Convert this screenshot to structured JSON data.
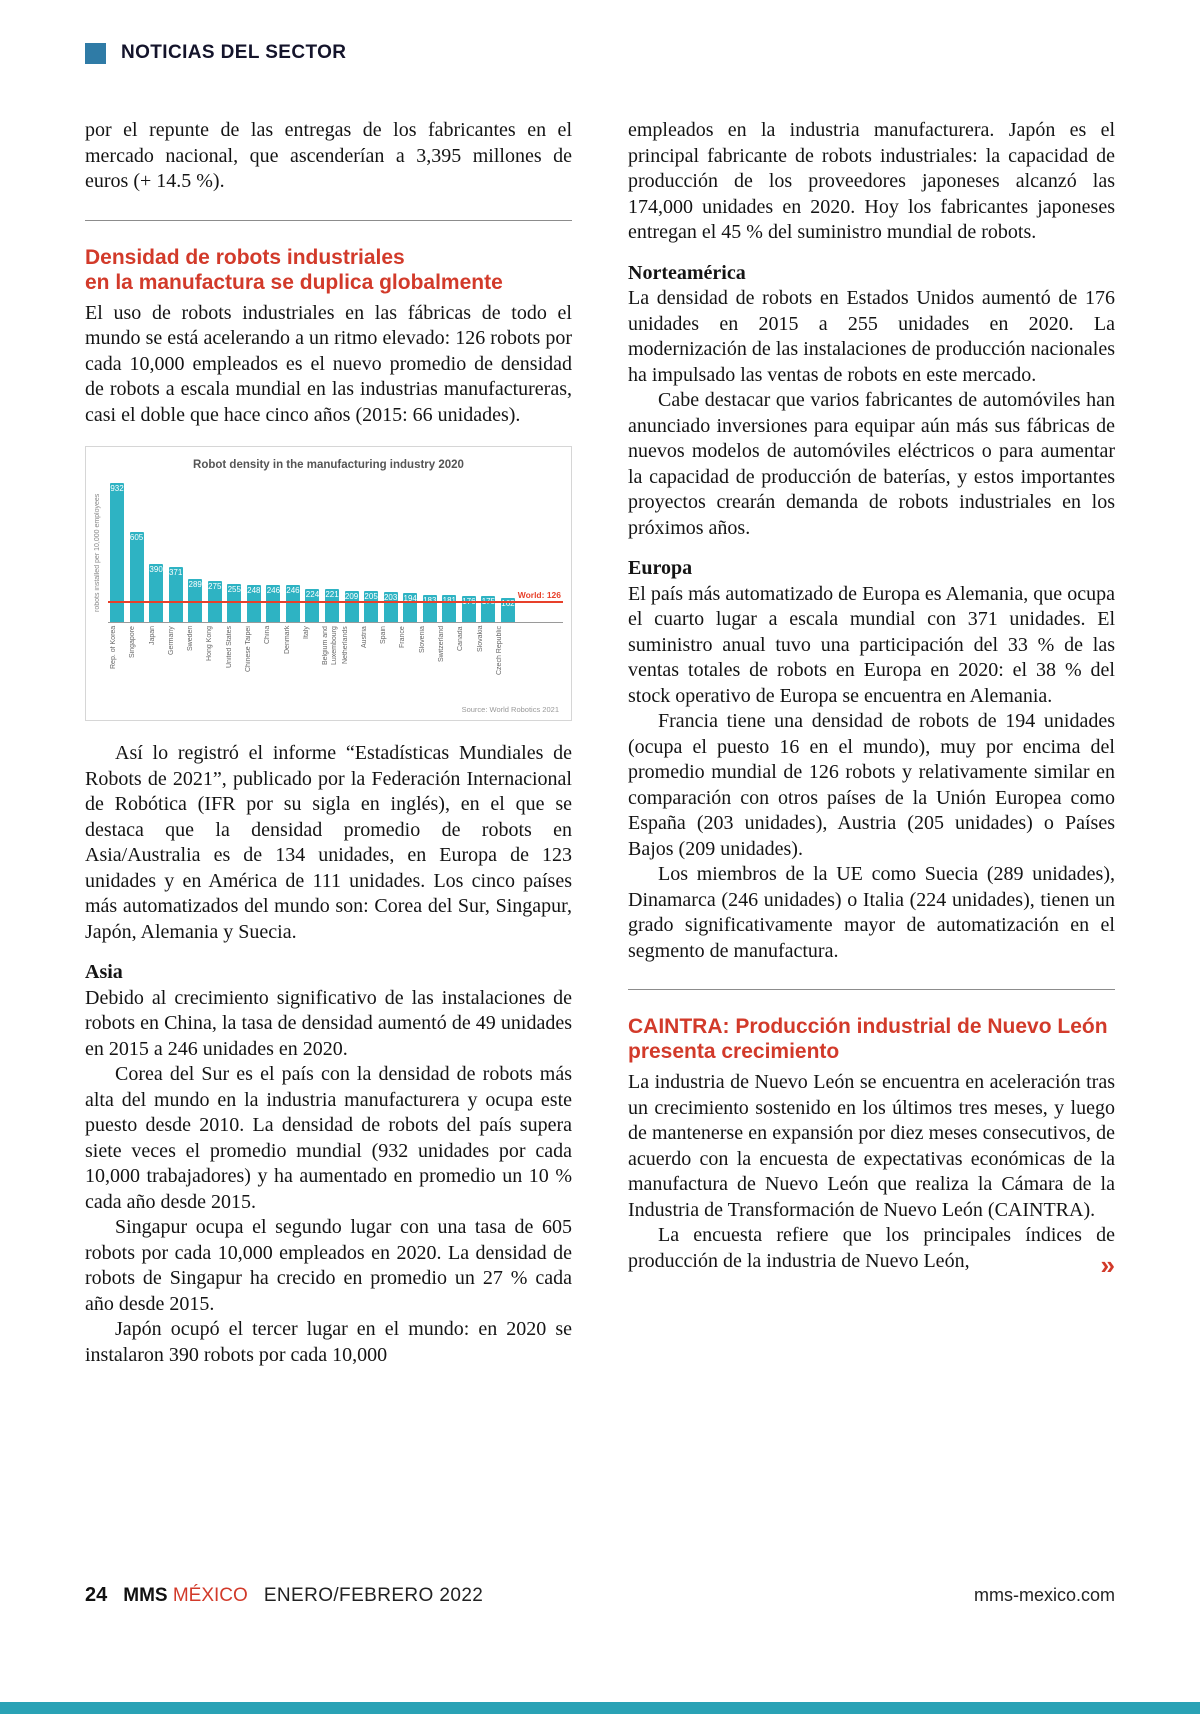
{
  "colors": {
    "accent_red": "#d23a2a",
    "accent_teal_bar": "#2aa2b5",
    "header_square_blue": "#2f7ba6"
  },
  "header": {
    "section_label": "NOTICIAS DEL SECTOR"
  },
  "left_column": {
    "carryover": "por el repunte de las entregas de los fabricantes en el mercado nacional, que ascenderían a 3,395 millones de euros (+ 14.5 %).",
    "article1_title_1": "Densidad de robots industriales",
    "article1_title_2": "en la manufactura se duplica globalmente",
    "article1_intro": "El uso de robots industriales en las fábricas de todo el mundo se está acelerando a un ritmo elevado: 126 robots por cada 10,000 empleados es el nuevo promedio de densidad de robots a escala mundial en las industrias manufactureras, casi el doble que hace cinco años (2015: 66 unidades).",
    "after_chart": "Así lo registró el informe “Estadísticas Mundiales de Robots de 2021”, publicado por la Federación Internacional de Robótica (IFR por su sigla en inglés), en el que se destaca que la densidad promedio de robots en Asia/Australia es de 134 unidades, en Europa de 123 unidades y en América de 111 unidades. Los cinco países más automatizados del mundo son: Corea del Sur, Singapur, Japón, Alemania y Suecia.",
    "asia_heading": "Asia",
    "asia_p1": "Debido al crecimiento significativo de las instalaciones de robots en China, la tasa de densidad aumentó de 49 unidades en 2015 a 246 unidades en 2020.",
    "asia_p2": "Corea del Sur es el país con la densidad de robots más alta del mundo en la industria manufacturera y ocupa este puesto desde 2010. La densidad de robots del país supera siete veces el promedio mundial (932 unidades por cada 10,000 trabajadores) y ha aumentado en promedio un 10 % cada año desde 2015.",
    "asia_p3": "Singapur ocupa el segundo lugar con una tasa de 605 robots por cada 10,000 empleados en 2020. La densidad de robots de Singapur ha crecido en promedio un 27 % cada año desde 2015.",
    "asia_p4": "Japón ocupó el tercer lugar en el mundo: en 2020 se instalaron 390 robots por cada 10,000"
  },
  "right_column": {
    "japan_cont": "empleados en la industria manufacturera. Japón es el principal fabricante de robots industriales: la capacidad de producción de los proveedores japoneses alcanzó las 174,000 unidades en 2020. Hoy los fabricantes japoneses entregan el 45 % del suministro mundial de robots.",
    "na_heading": "Norteamérica",
    "na_p1": "La densidad de robots en Estados Unidos aumentó de 176 unidades en 2015 a 255 unidades en 2020. La modernización de las instalaciones de producción nacionales ha impulsado las ventas de robots en este mercado.",
    "na_p2": "Cabe destacar que varios fabricantes de automóviles han anunciado inversiones para equipar aún más sus fábricas de nuevos modelos de automóviles eléctricos o para aumentar la capacidad de producción de baterías, y estos importantes proyectos crearán demanda de robots industriales en los próximos años.",
    "eu_heading": "Europa",
    "eu_p1": "El país más automatizado de Europa es Alemania, que ocupa el cuarto lugar a escala mundial con 371 unidades. El suministro anual tuvo una participación del 33 % de las ventas totales de robots en Europa en 2020: el 38 % del stock operativo de Europa se encuentra en Alemania.",
    "eu_p2": "Francia tiene una densidad de robots de 194 unidades (ocupa el puesto 16 en el mundo), muy por encima del promedio mundial de 126 robots y relativamente similar en comparación con otros países de la Unión Europea como España (203 unidades), Austria (205 unidades) o Países Bajos (209 unidades).",
    "eu_p3": "Los miembros de la UE como Suecia (289 unidades), Dinamarca (246 unidades) o Italia (224 unidades), tienen un grado significativamente mayor de automatización en el segmento de manufactura.",
    "article2_title_1": "CAINTRA: Producción industrial de Nuevo León",
    "article2_title_2": "presenta crecimiento",
    "article2_p1": "La industria de Nuevo León se encuentra en aceleración tras un crecimiento sostenido en los últimos tres meses, y luego de mantenerse en expansión por diez meses consecutivos, de acuerdo con la encuesta de expectativas económicas de la manufactura de Nuevo León que realiza la Cámara de la Industria de Transformación de Nuevo León (CAINTRA).",
    "article2_p2": "La encuesta refiere que los principales índices de producción de la industria de Nuevo León,",
    "continuation_mark": "»"
  },
  "chart_data": {
    "type": "bar",
    "title": "Robot density in the manufacturing industry 2020",
    "ylabel": "robots installed per 10,000 employees",
    "xlabel": "",
    "source": "Source: World Robotics 2021",
    "ylim": [
      0,
      932
    ],
    "grid": false,
    "bar_color": "#2eb3c3",
    "world_line_color": "#e8402a",
    "world_average": 126,
    "world_label": "World: 126",
    "categories": [
      "Rep. of Korea",
      "Singapore",
      "Japan",
      "Germany",
      "Sweden",
      "Hong Kong",
      "United States",
      "Chinese Taipei",
      "China",
      "Denmark",
      "Italy",
      "Belgium and Luxembourg",
      "Netherlands",
      "Austria",
      "Spain",
      "France",
      "Slovenia",
      "Switzerland",
      "Canada",
      "Slovakia",
      "Czech Republic"
    ],
    "values": [
      932,
      605,
      390,
      371,
      289,
      275,
      255,
      248,
      246,
      246,
      224,
      221,
      209,
      205,
      203,
      194,
      183,
      181,
      176,
      175,
      162
    ]
  },
  "footer": {
    "page_number": "24",
    "brand_black": "MMS",
    "brand_red": "MÉXICO",
    "issue": "ENERO/FEBRERO 2022",
    "website": "mms-mexico.com"
  }
}
